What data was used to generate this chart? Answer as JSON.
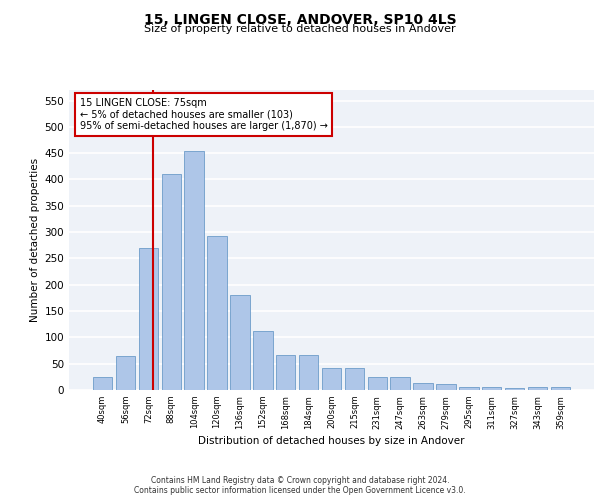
{
  "title": "15, LINGEN CLOSE, ANDOVER, SP10 4LS",
  "subtitle": "Size of property relative to detached houses in Andover",
  "xlabel": "Distribution of detached houses by size in Andover",
  "ylabel": "Number of detached properties",
  "categories": [
    "40sqm",
    "56sqm",
    "72sqm",
    "88sqm",
    "104sqm",
    "120sqm",
    "136sqm",
    "152sqm",
    "168sqm",
    "184sqm",
    "200sqm",
    "215sqm",
    "231sqm",
    "247sqm",
    "263sqm",
    "279sqm",
    "295sqm",
    "311sqm",
    "327sqm",
    "343sqm",
    "359sqm"
  ],
  "values": [
    25,
    65,
    270,
    410,
    455,
    293,
    180,
    113,
    67,
    67,
    42,
    42,
    25,
    25,
    14,
    12,
    6,
    5,
    4,
    5,
    5
  ],
  "bar_color": "#aec6e8",
  "bar_edge_color": "#5a8fc2",
  "property_line_color": "#cc0000",
  "annotation_text": "15 LINGEN CLOSE: 75sqm\n← 5% of detached houses are smaller (103)\n95% of semi-detached houses are larger (1,870) →",
  "annotation_box_color": "#cc0000",
  "background_color": "#eef2f8",
  "grid_color": "#ffffff",
  "ylim": [
    0,
    570
  ],
  "yticks": [
    0,
    50,
    100,
    150,
    200,
    250,
    300,
    350,
    400,
    450,
    500,
    550
  ],
  "footer_line1": "Contains HM Land Registry data © Crown copyright and database right 2024.",
  "footer_line2": "Contains public sector information licensed under the Open Government Licence v3.0."
}
